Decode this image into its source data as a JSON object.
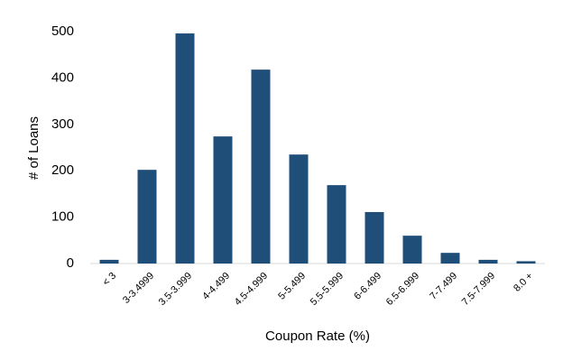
{
  "chart_data": {
    "type": "bar",
    "x_label": "Coupon Rate (%)",
    "y_label": "# of Loans",
    "categories": [
      "< 3",
      "3-3.4999",
      "3.5-3.999",
      "4-4.499",
      "4.5-4.999",
      "5-5.499",
      "5.5-5.999",
      "6-6.499",
      "6.5-6.999",
      "7-7.499",
      "7.5-7.999",
      "8.0 +"
    ],
    "values": [
      8,
      202,
      496,
      274,
      418,
      235,
      169,
      111,
      60,
      23,
      8,
      5
    ],
    "color": "#1f4e79",
    "ylim": [
      0,
      500
    ],
    "yticks": [
      0,
      100,
      200,
      300,
      400,
      500
    ],
    "grid": false
  }
}
